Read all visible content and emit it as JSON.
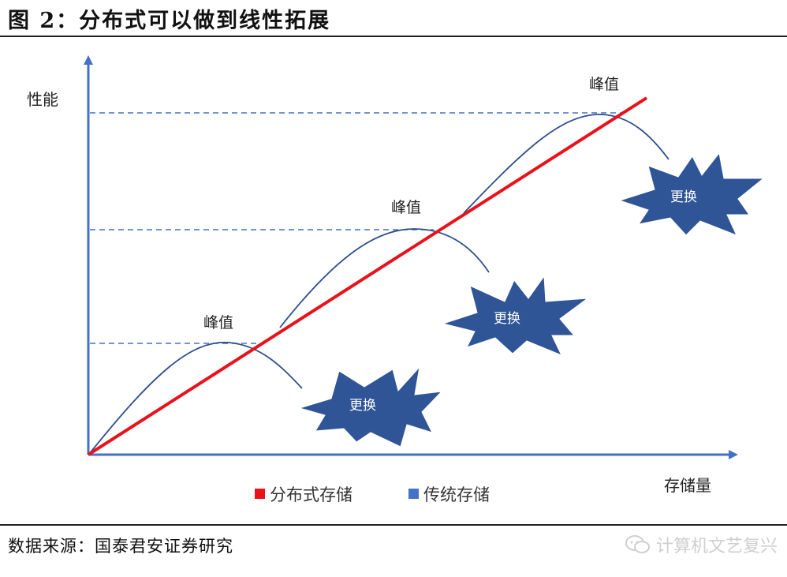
{
  "figure": {
    "title": "图 2：分布式可以做到线性拓展",
    "source": "数据来源：国泰君安证券研究",
    "watermark": "计算机文艺复兴"
  },
  "axes": {
    "y_label": "性能",
    "x_label": "存储量"
  },
  "peaks": [
    {
      "label": "峰值"
    },
    {
      "label": "峰值"
    },
    {
      "label": "峰值"
    }
  ],
  "bursts": [
    {
      "label": "更换"
    },
    {
      "label": "更换"
    },
    {
      "label": "更换"
    }
  ],
  "legend": {
    "items": [
      {
        "label": "分布式存储",
        "color": "#e8121b"
      },
      {
        "label": "传统存储",
        "color": "#4472c4"
      }
    ]
  },
  "colors": {
    "axis": "#4472c4",
    "distributed_line": "#e8121b",
    "traditional_curve": "#2f4f8f",
    "burst_fill": "#2f5597",
    "dashed": "#4472c4"
  }
}
